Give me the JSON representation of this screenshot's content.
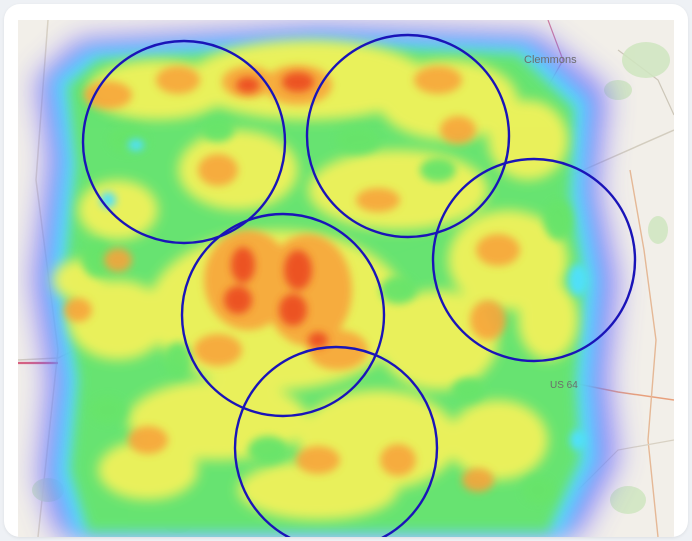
{
  "map": {
    "labels": {
      "city": "Clemmons",
      "route": "US 64"
    },
    "heat_colors": [
      "#6c63ff",
      "#4fe0ff",
      "#67e46a",
      "#f5f25a",
      "#f8a33a",
      "#ea3d1f"
    ],
    "ring_color": "#1a14b8",
    "rings_count": 5
  }
}
